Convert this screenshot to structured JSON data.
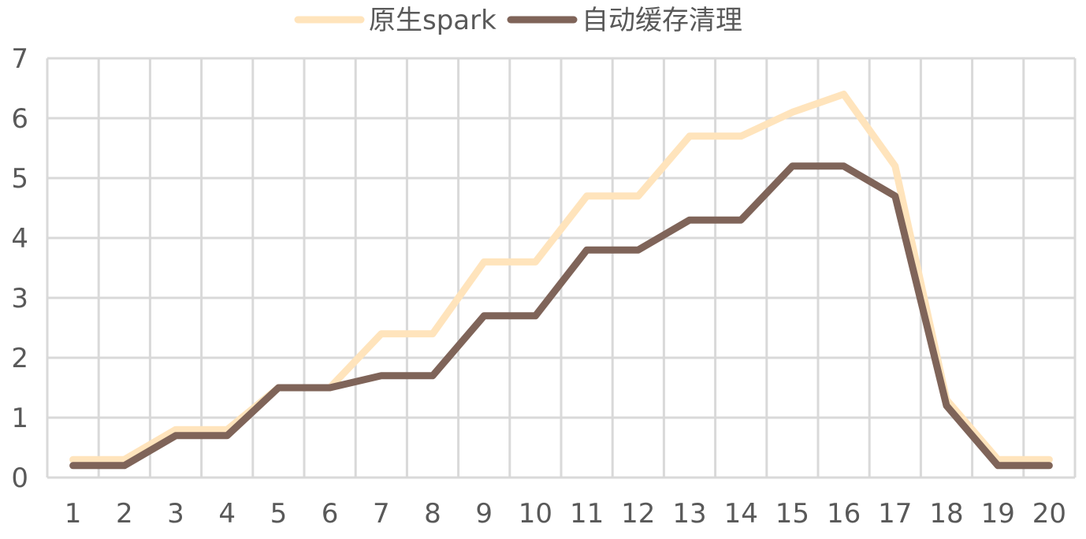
{
  "chart_data": {
    "type": "line",
    "x": [
      1,
      2,
      3,
      4,
      5,
      6,
      7,
      8,
      9,
      10,
      11,
      12,
      13,
      14,
      15,
      16,
      17,
      18,
      19,
      20
    ],
    "x_tick_labels": [
      "1",
      "2",
      "3",
      "4",
      "5",
      "6",
      "7",
      "8",
      "9",
      "10",
      "11",
      "12",
      "13",
      "14",
      "15",
      "16",
      "17",
      "18",
      "19",
      "20"
    ],
    "y_tick_labels": [
      "0",
      "1",
      "2",
      "3",
      "4",
      "5",
      "6",
      "7"
    ],
    "ylim": [
      0,
      7
    ],
    "grid": true,
    "legend_position": "top-center",
    "series": [
      {
        "name": "原生spark",
        "color": "#FFE4BC",
        "values": [
          0.3,
          0.3,
          0.8,
          0.8,
          1.5,
          1.5,
          2.4,
          2.4,
          3.6,
          3.6,
          4.7,
          4.7,
          5.7,
          5.7,
          6.1,
          6.4,
          5.2,
          1.3,
          0.3,
          0.3
        ]
      },
      {
        "name": "自动缓存清理",
        "color": "#7F6459",
        "values": [
          0.2,
          0.2,
          0.7,
          0.7,
          1.5,
          1.5,
          1.7,
          1.7,
          2.7,
          2.7,
          3.8,
          3.8,
          4.3,
          4.3,
          5.2,
          5.2,
          4.7,
          1.2,
          0.2,
          0.2
        ]
      }
    ],
    "grid_color": "#D9D9D9",
    "text_color": "#595959"
  }
}
